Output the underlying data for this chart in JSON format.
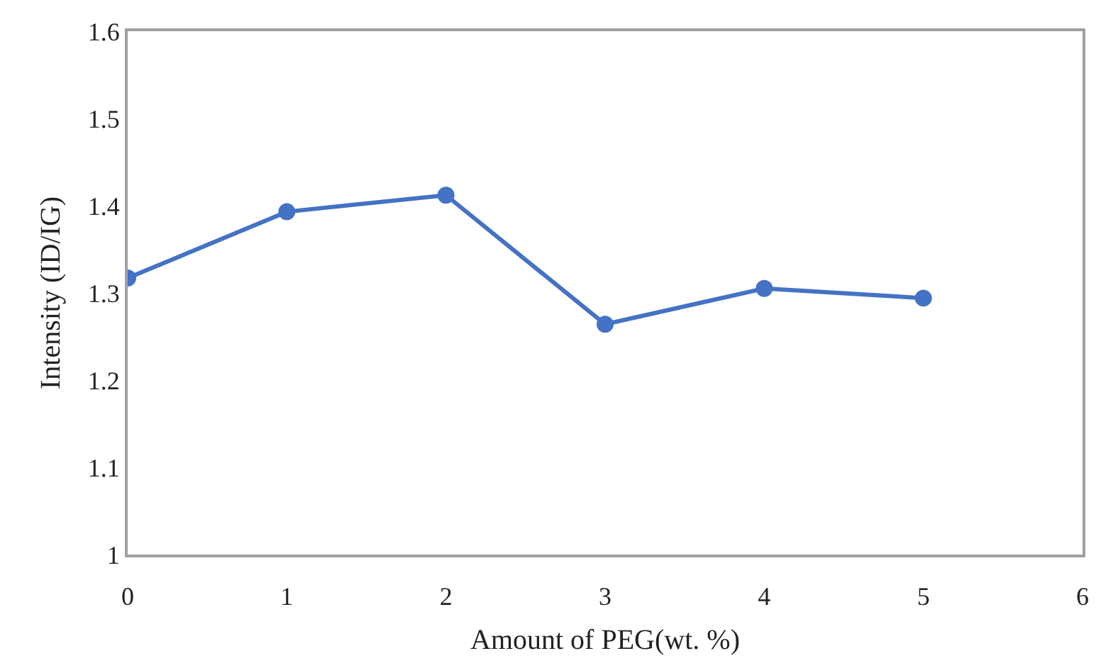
{
  "chart_data": {
    "type": "line",
    "xlabel": "Amount of PEG(wt. %)",
    "ylabel": "Intensity (ID/IG)",
    "x": [
      0,
      1,
      2,
      3,
      4,
      5
    ],
    "series": [
      {
        "color": "#4472c4",
        "values": [
          1.317,
          1.393,
          1.412,
          1.264,
          1.305,
          1.294
        ]
      }
    ],
    "xlim": [
      0,
      6
    ],
    "xticks": [
      0,
      1,
      2,
      3,
      4,
      5,
      6
    ],
    "ylim": [
      1,
      1.6
    ],
    "yticks": [
      1,
      1.1,
      1.2,
      1.3,
      1.4,
      1.5,
      1.6
    ],
    "marker": "circle",
    "line_style": "solid"
  }
}
